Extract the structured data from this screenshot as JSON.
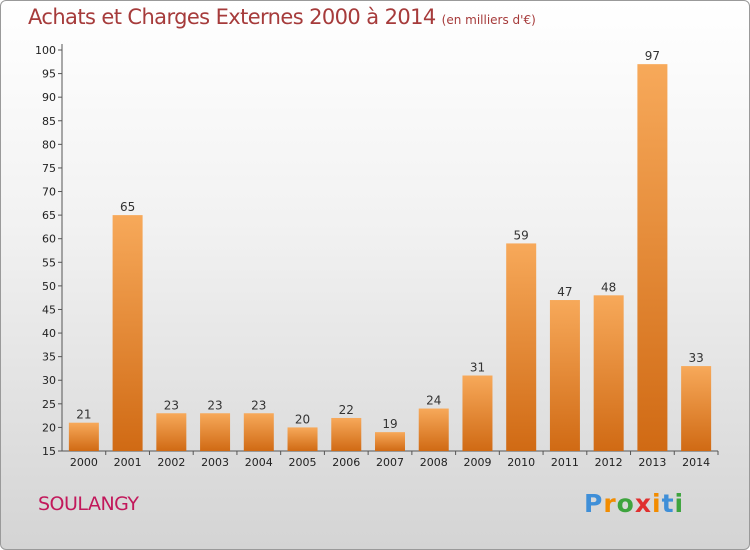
{
  "title": "Achats et Charges Externes 2000 à 2014",
  "unit": "(en milliers d'€)",
  "town": "SOULANGY",
  "logo": {
    "letters": [
      "P",
      "r",
      "o",
      "x",
      "i",
      "t",
      "i"
    ],
    "colors": [
      "#3f8fd8",
      "#f28c00",
      "#3ea43e",
      "#e0302f",
      "#f28c00",
      "#3f8fd8",
      "#3ea43e"
    ]
  },
  "colors": {
    "bar_light": "#f7a95a",
    "bar_dark": "#d06a14",
    "title": "#a63b3b",
    "town": "#c2185b"
  },
  "chart_data": {
    "type": "bar",
    "title": "Achats et Charges Externes 2000 à 2014",
    "categories": [
      "2000",
      "2001",
      "2002",
      "2003",
      "2004",
      "2005",
      "2006",
      "2007",
      "2008",
      "2009",
      "2010",
      "2011",
      "2012",
      "2013",
      "2014"
    ],
    "values": [
      21,
      65,
      23,
      23,
      23,
      20,
      22,
      19,
      24,
      31,
      59,
      47,
      48,
      97,
      33
    ],
    "ylim": [
      15,
      100
    ],
    "yticks": [
      15,
      20,
      25,
      30,
      35,
      40,
      45,
      50,
      55,
      60,
      65,
      70,
      75,
      80,
      85,
      90,
      95,
      100
    ],
    "grid": false,
    "legend": "none"
  }
}
